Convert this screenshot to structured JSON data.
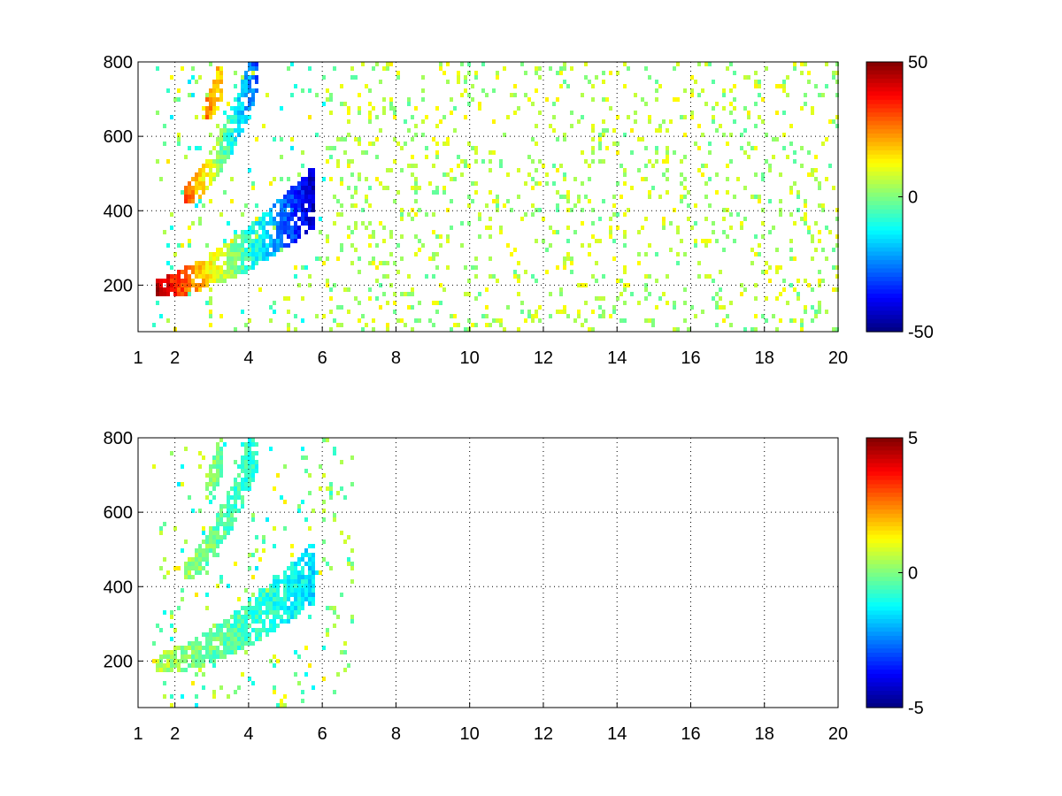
{
  "chart_data": [
    {
      "type": "heatmap",
      "xlim": [
        1,
        20
      ],
      "ylim": [
        75,
        800
      ],
      "xticks": [
        1,
        2,
        4,
        6,
        8,
        10,
        12,
        14,
        16,
        18,
        20
      ],
      "yticks": [
        200,
        400,
        600,
        800
      ],
      "grid": true,
      "colormap": "jet",
      "colorbar": {
        "min": -50,
        "max": 50,
        "ticks": [
          -50,
          0,
          50
        ]
      },
      "bands": [
        {
          "x0": 1.4,
          "x1": 5.8,
          "f0": 200,
          "f1": 450,
          "v_start": 45,
          "v_end": -45
        },
        {
          "x0": 2.2,
          "x1": 4.2,
          "f0": 450,
          "f1": 800,
          "v_start": 30,
          "v_end": -30
        },
        {
          "x0": 2.8,
          "x1": 3.3,
          "f0": 680,
          "f1": 800,
          "v_start": 25,
          "v_end": 15
        }
      ],
      "scatter_extent": [
        6,
        20
      ],
      "scatter_level": 5
    },
    {
      "type": "heatmap",
      "xlim": [
        1,
        20
      ],
      "ylim": [
        75,
        800
      ],
      "xticks": [
        1,
        2,
        4,
        6,
        8,
        10,
        12,
        14,
        16,
        18,
        20
      ],
      "yticks": [
        200,
        400,
        600,
        800
      ],
      "grid": true,
      "colormap": "jet",
      "colorbar": {
        "min": -5,
        "max": 5,
        "ticks": [
          -5,
          0,
          5
        ]
      },
      "bands": [
        {
          "x0": 1.4,
          "x1": 5.8,
          "f0": 200,
          "f1": 450,
          "v_start": 0.5,
          "v_end": -1.5
        },
        {
          "x0": 2.2,
          "x1": 4.2,
          "f0": 450,
          "f1": 800,
          "v_start": 0.3,
          "v_end": -1.0
        },
        {
          "x0": 2.8,
          "x1": 3.3,
          "f0": 680,
          "f1": 800,
          "v_start": 0.2,
          "v_end": -0.3
        }
      ],
      "scatter_extent": [
        6.0,
        6.8
      ],
      "scatter_level": 0
    }
  ],
  "colors": {
    "axis": "#000000",
    "grid": "#000000",
    "background": "#ffffff"
  }
}
